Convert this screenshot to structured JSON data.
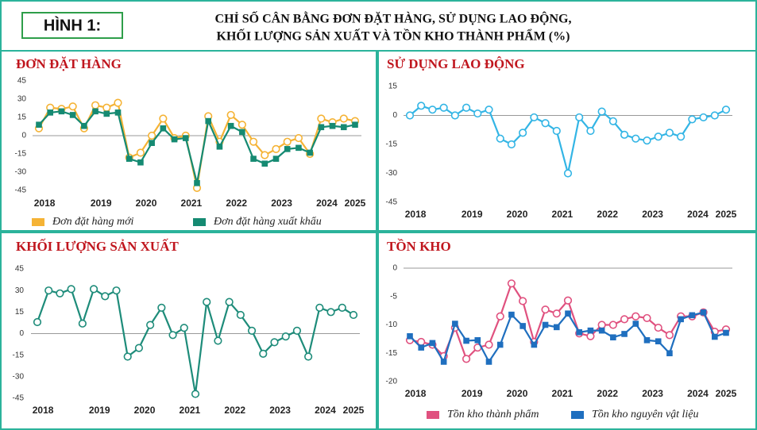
{
  "header": {
    "label": "HÌNH 1:",
    "title": [
      "CHỈ SỐ CÂN BẰNG ĐƠN ĐẶT HÀNG, SỬ DỤNG LAO ĐỘNG,",
      "KHỐI LƯỢNG SẢN XUẤT VÀ TỒN KHO THÀNH PHẨM (%)"
    ]
  },
  "chart_data": [
    {
      "type": "line",
      "title": "ĐƠN ĐẶT HÀNG",
      "categories": [
        "2018",
        null,
        null,
        null,
        null,
        "2019",
        null,
        null,
        null,
        "2020",
        null,
        null,
        null,
        "2021",
        null,
        null,
        null,
        "2022",
        null,
        null,
        null,
        "2023",
        null,
        null,
        null,
        "2024",
        null,
        null,
        "2025"
      ],
      "series": [
        {
          "name": "Đơn đặt hàng mới",
          "color": "#f5b335",
          "marker": "circle",
          "values": [
            6,
            23,
            22,
            24,
            6,
            25,
            23,
            27,
            -18,
            -14,
            0,
            14,
            -2,
            0,
            -43,
            16,
            -5,
            17,
            9,
            -5,
            -16,
            -11,
            -5,
            -2,
            -15,
            14,
            11,
            14,
            12
          ]
        },
        {
          "name": "Đơn đặt hàng xuất khẩu",
          "color": "#158a72",
          "marker": "square",
          "values": [
            9,
            19,
            20,
            17,
            8,
            20,
            18,
            19,
            -19,
            -22,
            -6,
            6,
            -3,
            -2,
            -39,
            12,
            -9,
            8,
            3,
            -19,
            -23,
            -19,
            -11,
            -10,
            -14,
            7,
            8,
            7,
            9
          ]
        }
      ],
      "ylim": [
        -45,
        45
      ],
      "yticks": [
        -45,
        -30,
        -15,
        0,
        15,
        30,
        45
      ]
    },
    {
      "type": "line",
      "title": "SỬ DỤNG LAO ĐỘNG",
      "categories": [
        "2018",
        null,
        null,
        null,
        null,
        "2019",
        null,
        null,
        null,
        "2020",
        null,
        null,
        null,
        "2021",
        null,
        null,
        null,
        "2022",
        null,
        null,
        null,
        "2023",
        null,
        null,
        null,
        "2024",
        null,
        null,
        "2025"
      ],
      "color": "#33b5e5",
      "marker": "circle",
      "values": [
        0,
        5,
        3,
        4,
        0,
        4,
        1,
        3,
        -12,
        -15,
        -9,
        -1,
        -4,
        -8,
        -30,
        -1,
        -8,
        2,
        -3,
        -10,
        -12,
        -13,
        -11,
        -9,
        -11,
        -2,
        -1,
        0,
        3
      ],
      "ylim": [
        -45,
        15
      ],
      "yticks": [
        -45,
        -30,
        -15,
        0,
        15
      ]
    },
    {
      "type": "line",
      "title": "KHỐI LƯỢNG SẢN XUẤT",
      "categories": [
        "2018",
        null,
        null,
        null,
        null,
        "2019",
        null,
        null,
        null,
        "2020",
        null,
        null,
        null,
        "2021",
        null,
        null,
        null,
        "2022",
        null,
        null,
        null,
        "2023",
        null,
        null,
        null,
        "2024",
        null,
        null,
        "2025"
      ],
      "color": "#1e8c7a",
      "marker": "circle",
      "values": [
        8,
        30,
        28,
        31,
        7,
        31,
        26,
        30,
        -16,
        -10,
        6,
        18,
        -1,
        4,
        -42,
        22,
        -5,
        22,
        13,
        2,
        -14,
        -6,
        -2,
        2,
        -16,
        18,
        15,
        18,
        13
      ],
      "ylim": [
        -45,
        45
      ],
      "yticks": [
        -45,
        -30,
        -15,
        0,
        15,
        30,
        45
      ]
    },
    {
      "type": "line",
      "title": "TỒN KHO",
      "categories": [
        "2018",
        null,
        null,
        null,
        null,
        "2019",
        null,
        null,
        null,
        "2020",
        null,
        null,
        null,
        "2021",
        null,
        null,
        null,
        "2022",
        null,
        null,
        null,
        "2023",
        null,
        null,
        null,
        "2024",
        null,
        null,
        "2025"
      ],
      "series": [
        {
          "name": "Tồn kho thành phẩm",
          "color": "#e0517f",
          "marker": "circle",
          "values": [
            -12.7,
            -13,
            -13.5,
            -15.5,
            -10.5,
            -16,
            -14,
            -13.5,
            -8.5,
            -2.7,
            -5.8,
            -13,
            -7.3,
            -8,
            -5.7,
            -11.5,
            -12,
            -10,
            -10,
            -9,
            -8.5,
            -8.8,
            -10.5,
            -11.8,
            -8.5,
            -8.5,
            -7.8,
            -11.2,
            -10.8
          ]
        },
        {
          "name": "Tồn kho nguyên vật liệu",
          "color": "#1f6fbf",
          "marker": "square",
          "values": [
            -12,
            -14,
            -13.2,
            -16.5,
            -9.8,
            -12.8,
            -12.7,
            -16.5,
            -13.5,
            -8.2,
            -10.2,
            -13.5,
            -10,
            -10.4,
            -8,
            -11.3,
            -11,
            -11,
            -12.2,
            -11.6,
            -9.8,
            -12.7,
            -12.9,
            -15,
            -9,
            -8.3,
            -7.8,
            -12.1,
            -11.4
          ]
        }
      ],
      "ylim": [
        -20,
        0
      ],
      "yticks": [
        -20,
        -15,
        -10,
        -5,
        0
      ]
    }
  ]
}
